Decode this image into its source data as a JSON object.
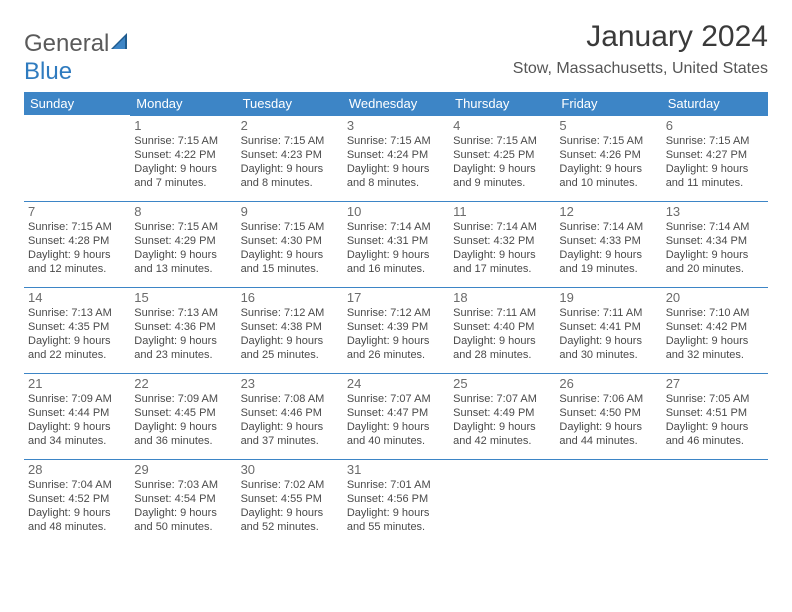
{
  "brand": {
    "part1": "General",
    "part2": "Blue"
  },
  "title": "January 2024",
  "location": "Stow, Massachusetts, United States",
  "colors": {
    "header_bg": "#3d85c6",
    "header_text": "#ffffff",
    "rule": "#3d85c6",
    "body_text": "#4a4a4a",
    "daynum": "#6b6b6b",
    "title_text": "#3a3a3a",
    "logo_grey": "#5a5a5a",
    "logo_blue": "#2f7bbf",
    "page_bg": "#ffffff"
  },
  "typography": {
    "title_fontsize": 30,
    "location_fontsize": 16,
    "header_fontsize": 13,
    "daynum_fontsize": 13,
    "info_fontsize": 11
  },
  "day_headers": [
    "Sunday",
    "Monday",
    "Tuesday",
    "Wednesday",
    "Thursday",
    "Friday",
    "Saturday"
  ],
  "weeks": [
    [
      {
        "day": "",
        "sunrise": "",
        "sunset": "",
        "daylight": ""
      },
      {
        "day": "1",
        "sunrise": "Sunrise: 7:15 AM",
        "sunset": "Sunset: 4:22 PM",
        "daylight": "Daylight: 9 hours and 7 minutes."
      },
      {
        "day": "2",
        "sunrise": "Sunrise: 7:15 AM",
        "sunset": "Sunset: 4:23 PM",
        "daylight": "Daylight: 9 hours and 8 minutes."
      },
      {
        "day": "3",
        "sunrise": "Sunrise: 7:15 AM",
        "sunset": "Sunset: 4:24 PM",
        "daylight": "Daylight: 9 hours and 8 minutes."
      },
      {
        "day": "4",
        "sunrise": "Sunrise: 7:15 AM",
        "sunset": "Sunset: 4:25 PM",
        "daylight": "Daylight: 9 hours and 9 minutes."
      },
      {
        "day": "5",
        "sunrise": "Sunrise: 7:15 AM",
        "sunset": "Sunset: 4:26 PM",
        "daylight": "Daylight: 9 hours and 10 minutes."
      },
      {
        "day": "6",
        "sunrise": "Sunrise: 7:15 AM",
        "sunset": "Sunset: 4:27 PM",
        "daylight": "Daylight: 9 hours and 11 minutes."
      }
    ],
    [
      {
        "day": "7",
        "sunrise": "Sunrise: 7:15 AM",
        "sunset": "Sunset: 4:28 PM",
        "daylight": "Daylight: 9 hours and 12 minutes."
      },
      {
        "day": "8",
        "sunrise": "Sunrise: 7:15 AM",
        "sunset": "Sunset: 4:29 PM",
        "daylight": "Daylight: 9 hours and 13 minutes."
      },
      {
        "day": "9",
        "sunrise": "Sunrise: 7:15 AM",
        "sunset": "Sunset: 4:30 PM",
        "daylight": "Daylight: 9 hours and 15 minutes."
      },
      {
        "day": "10",
        "sunrise": "Sunrise: 7:14 AM",
        "sunset": "Sunset: 4:31 PM",
        "daylight": "Daylight: 9 hours and 16 minutes."
      },
      {
        "day": "11",
        "sunrise": "Sunrise: 7:14 AM",
        "sunset": "Sunset: 4:32 PM",
        "daylight": "Daylight: 9 hours and 17 minutes."
      },
      {
        "day": "12",
        "sunrise": "Sunrise: 7:14 AM",
        "sunset": "Sunset: 4:33 PM",
        "daylight": "Daylight: 9 hours and 19 minutes."
      },
      {
        "day": "13",
        "sunrise": "Sunrise: 7:14 AM",
        "sunset": "Sunset: 4:34 PM",
        "daylight": "Daylight: 9 hours and 20 minutes."
      }
    ],
    [
      {
        "day": "14",
        "sunrise": "Sunrise: 7:13 AM",
        "sunset": "Sunset: 4:35 PM",
        "daylight": "Daylight: 9 hours and 22 minutes."
      },
      {
        "day": "15",
        "sunrise": "Sunrise: 7:13 AM",
        "sunset": "Sunset: 4:36 PM",
        "daylight": "Daylight: 9 hours and 23 minutes."
      },
      {
        "day": "16",
        "sunrise": "Sunrise: 7:12 AM",
        "sunset": "Sunset: 4:38 PM",
        "daylight": "Daylight: 9 hours and 25 minutes."
      },
      {
        "day": "17",
        "sunrise": "Sunrise: 7:12 AM",
        "sunset": "Sunset: 4:39 PM",
        "daylight": "Daylight: 9 hours and 26 minutes."
      },
      {
        "day": "18",
        "sunrise": "Sunrise: 7:11 AM",
        "sunset": "Sunset: 4:40 PM",
        "daylight": "Daylight: 9 hours and 28 minutes."
      },
      {
        "day": "19",
        "sunrise": "Sunrise: 7:11 AM",
        "sunset": "Sunset: 4:41 PM",
        "daylight": "Daylight: 9 hours and 30 minutes."
      },
      {
        "day": "20",
        "sunrise": "Sunrise: 7:10 AM",
        "sunset": "Sunset: 4:42 PM",
        "daylight": "Daylight: 9 hours and 32 minutes."
      }
    ],
    [
      {
        "day": "21",
        "sunrise": "Sunrise: 7:09 AM",
        "sunset": "Sunset: 4:44 PM",
        "daylight": "Daylight: 9 hours and 34 minutes."
      },
      {
        "day": "22",
        "sunrise": "Sunrise: 7:09 AM",
        "sunset": "Sunset: 4:45 PM",
        "daylight": "Daylight: 9 hours and 36 minutes."
      },
      {
        "day": "23",
        "sunrise": "Sunrise: 7:08 AM",
        "sunset": "Sunset: 4:46 PM",
        "daylight": "Daylight: 9 hours and 37 minutes."
      },
      {
        "day": "24",
        "sunrise": "Sunrise: 7:07 AM",
        "sunset": "Sunset: 4:47 PM",
        "daylight": "Daylight: 9 hours and 40 minutes."
      },
      {
        "day": "25",
        "sunrise": "Sunrise: 7:07 AM",
        "sunset": "Sunset: 4:49 PM",
        "daylight": "Daylight: 9 hours and 42 minutes."
      },
      {
        "day": "26",
        "sunrise": "Sunrise: 7:06 AM",
        "sunset": "Sunset: 4:50 PM",
        "daylight": "Daylight: 9 hours and 44 minutes."
      },
      {
        "day": "27",
        "sunrise": "Sunrise: 7:05 AM",
        "sunset": "Sunset: 4:51 PM",
        "daylight": "Daylight: 9 hours and 46 minutes."
      }
    ],
    [
      {
        "day": "28",
        "sunrise": "Sunrise: 7:04 AM",
        "sunset": "Sunset: 4:52 PM",
        "daylight": "Daylight: 9 hours and 48 minutes."
      },
      {
        "day": "29",
        "sunrise": "Sunrise: 7:03 AM",
        "sunset": "Sunset: 4:54 PM",
        "daylight": "Daylight: 9 hours and 50 minutes."
      },
      {
        "day": "30",
        "sunrise": "Sunrise: 7:02 AM",
        "sunset": "Sunset: 4:55 PM",
        "daylight": "Daylight: 9 hours and 52 minutes."
      },
      {
        "day": "31",
        "sunrise": "Sunrise: 7:01 AM",
        "sunset": "Sunset: 4:56 PM",
        "daylight": "Daylight: 9 hours and 55 minutes."
      },
      {
        "day": "",
        "sunrise": "",
        "sunset": "",
        "daylight": ""
      },
      {
        "day": "",
        "sunrise": "",
        "sunset": "",
        "daylight": ""
      },
      {
        "day": "",
        "sunrise": "",
        "sunset": "",
        "daylight": ""
      }
    ]
  ]
}
